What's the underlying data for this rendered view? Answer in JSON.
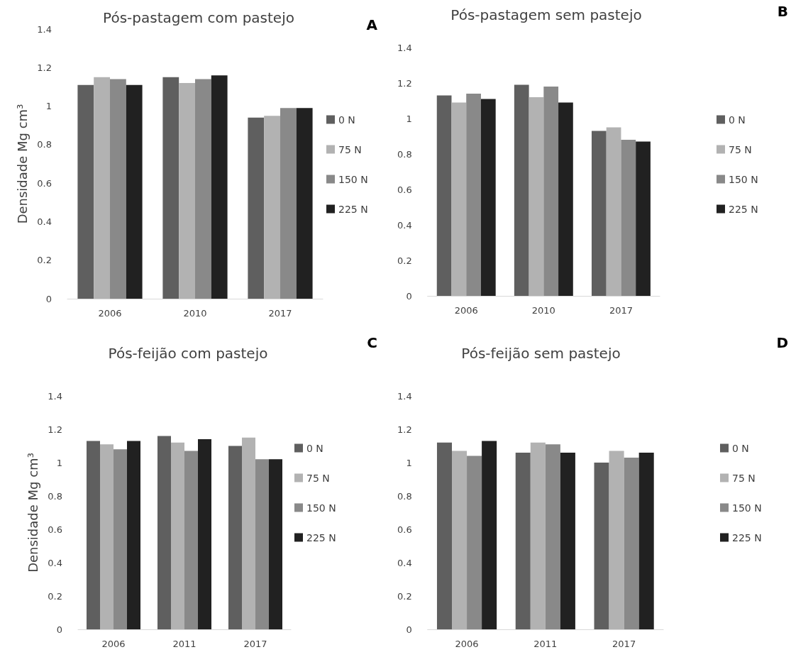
{
  "chart_data": [
    {
      "type": "bar",
      "title": "Pós-pastagem com pastejo",
      "ylabel": "Densidade Mg cm³",
      "annotations": [
        "A"
      ],
      "categories": [
        "2006",
        "2010",
        "2017"
      ],
      "series": [
        {
          "name": "0 N",
          "color": "#5f5f5f",
          "values": [
            1.11,
            1.15,
            0.94
          ]
        },
        {
          "name": "75 N",
          "color": "#b2b2b2",
          "values": [
            1.15,
            1.12,
            0.95
          ]
        },
        {
          "name": "150 N",
          "color": "#898989",
          "values": [
            1.14,
            1.14,
            0.99
          ]
        },
        {
          "name": "225 N",
          "color": "#212121",
          "values": [
            1.11,
            1.16,
            0.99
          ]
        }
      ],
      "ylim": [
        0,
        1.4
      ],
      "yticks": [
        0,
        0.2,
        0.4,
        0.6,
        0.8,
        1,
        1.2,
        1.4
      ],
      "grid": false,
      "legend": "right"
    },
    {
      "type": "bar",
      "title": "Pós-pastagem sem pastejo",
      "annotations": [
        "B"
      ],
      "categories": [
        "2006",
        "2010",
        "2017"
      ],
      "series": [
        {
          "name": "0 N",
          "color": "#5f5f5f",
          "values": [
            1.13,
            1.19,
            0.93
          ]
        },
        {
          "name": "75 N",
          "color": "#b2b2b2",
          "values": [
            1.09,
            1.12,
            0.95
          ]
        },
        {
          "name": "150 N",
          "color": "#898989",
          "values": [
            1.14,
            1.18,
            0.88
          ]
        },
        {
          "name": "225 N",
          "color": "#212121",
          "values": [
            1.11,
            1.09,
            0.87
          ]
        }
      ],
      "ylim": [
        0,
        1.4
      ],
      "yticks": [
        0,
        0.2,
        0.4,
        0.6,
        0.8,
        1,
        1.2,
        1.4
      ],
      "grid": false,
      "legend": "right"
    },
    {
      "type": "bar",
      "title": "Pós-feijão com pastejo",
      "ylabel": "Densidade Mg cm³",
      "annotations": [
        "C"
      ],
      "categories": [
        "2006",
        "2011",
        "2017"
      ],
      "series": [
        {
          "name": "0 N",
          "color": "#5f5f5f",
          "values": [
            1.13,
            1.16,
            1.1
          ]
        },
        {
          "name": "75 N",
          "color": "#b2b2b2",
          "values": [
            1.11,
            1.12,
            1.15
          ]
        },
        {
          "name": "150 N",
          "color": "#898989",
          "values": [
            1.08,
            1.07,
            1.02
          ]
        },
        {
          "name": "225 N",
          "color": "#212121",
          "values": [
            1.13,
            1.14,
            1.02
          ]
        }
      ],
      "ylim": [
        0,
        1.4
      ],
      "yticks": [
        0,
        0.2,
        0.4,
        0.6,
        0.8,
        1,
        1.2,
        1.4
      ],
      "grid": false,
      "legend": "right"
    },
    {
      "type": "bar",
      "title": "Pós-feijão sem pastejo",
      "annotations": [
        "D"
      ],
      "categories": [
        "2006",
        "2011",
        "2017"
      ],
      "series": [
        {
          "name": "0 N",
          "color": "#5f5f5f",
          "values": [
            1.12,
            1.06,
            1.0
          ]
        },
        {
          "name": "75 N",
          "color": "#b2b2b2",
          "values": [
            1.07,
            1.12,
            1.07
          ]
        },
        {
          "name": "150 N",
          "color": "#898989",
          "values": [
            1.04,
            1.11,
            1.03
          ]
        },
        {
          "name": "225 N",
          "color": "#212121",
          "values": [
            1.13,
            1.06,
            1.06
          ]
        }
      ],
      "ylim": [
        0,
        1.4
      ],
      "yticks": [
        0,
        0.2,
        0.4,
        0.6,
        0.8,
        1,
        1.2,
        1.4
      ],
      "grid": false,
      "legend": "right"
    }
  ]
}
